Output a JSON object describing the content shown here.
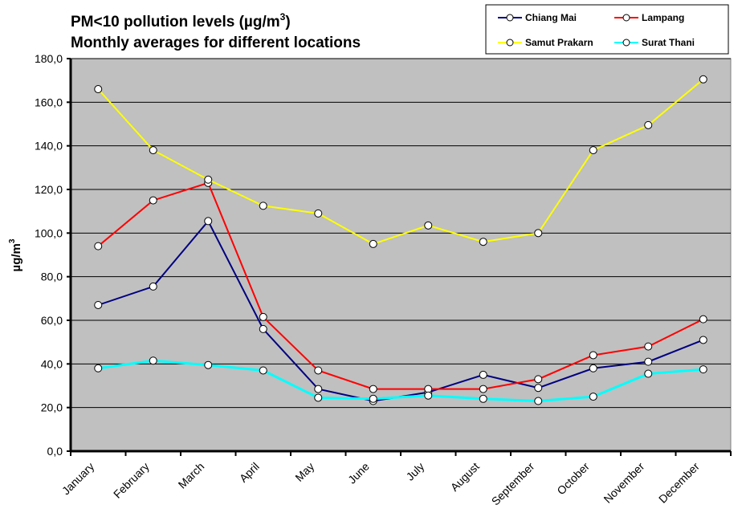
{
  "chart_data": {
    "type": "line",
    "title": "PM<10 pollution levels (µg/m",
    "title_superscript": "3",
    "title_suffix": ")",
    "subtitle": "Monthly averages for different locations",
    "xlabel": "",
    "ylabel": "µg/m",
    "ylabel_superscript": "3",
    "ylim": [
      0,
      180
    ],
    "yticks": [
      0,
      20,
      40,
      60,
      80,
      100,
      120,
      140,
      160,
      180
    ],
    "ytick_labels": [
      "0,0",
      "20,0",
      "40,0",
      "60,0",
      "80,0",
      "100,0",
      "120,0",
      "140,0",
      "160,0",
      "180,0"
    ],
    "grid": true,
    "legend_position": "top-right",
    "plot_background": "#c0c0c0",
    "categories": [
      "January",
      "February",
      "March",
      "April",
      "May",
      "June",
      "July",
      "August",
      "September",
      "October",
      "November",
      "December"
    ],
    "series": [
      {
        "name": "Chiang Mai",
        "color": "#000080",
        "values": [
          67,
          75.5,
          105.5,
          56,
          28.5,
          23,
          27,
          35,
          29,
          38,
          41,
          51
        ]
      },
      {
        "name": "Lampang",
        "color": "#ff0000",
        "values": [
          94,
          115,
          123,
          61.5,
          37,
          28.5,
          28.5,
          28.5,
          33,
          44,
          48,
          60.5
        ]
      },
      {
        "name": "Samut Prakarn",
        "color": "#ffff00",
        "values": [
          166,
          138,
          124.5,
          112.5,
          109,
          95,
          103.5,
          96,
          100,
          138,
          149.5,
          170.5
        ]
      },
      {
        "name": "Surat Thani",
        "color": "#00ffff",
        "values": [
          38,
          41.5,
          39.5,
          37,
          24.5,
          24,
          25.5,
          24,
          23,
          25,
          35.5,
          37.5
        ]
      }
    ]
  }
}
